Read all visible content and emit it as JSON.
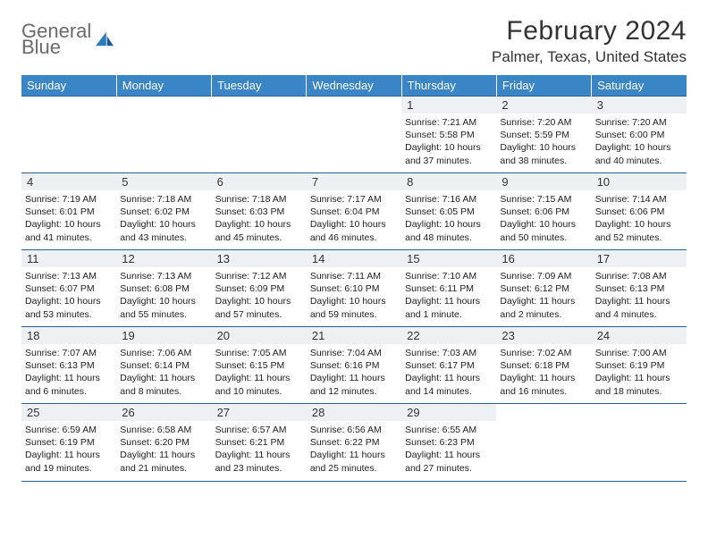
{
  "logo": {
    "line1": "General",
    "line2": "Blue"
  },
  "title": "February 2024",
  "location": "Palmer, Texas, United States",
  "dow": [
    "Sunday",
    "Monday",
    "Tuesday",
    "Wednesday",
    "Thursday",
    "Friday",
    "Saturday"
  ],
  "colors": {
    "header_bg": "#3a85c6",
    "header_text": "#ffffff",
    "rule": "#2f5f8f",
    "daynum_bg": "#eef1f3",
    "logo_gray": "#6b6b6b",
    "logo_blue": "#2b7bbf"
  },
  "weeks": [
    [
      null,
      null,
      null,
      null,
      {
        "n": "1",
        "sr": "7:21 AM",
        "ss": "5:58 PM",
        "dl": "10 hours and 37 minutes."
      },
      {
        "n": "2",
        "sr": "7:20 AM",
        "ss": "5:59 PM",
        "dl": "10 hours and 38 minutes."
      },
      {
        "n": "3",
        "sr": "7:20 AM",
        "ss": "6:00 PM",
        "dl": "10 hours and 40 minutes."
      }
    ],
    [
      {
        "n": "4",
        "sr": "7:19 AM",
        "ss": "6:01 PM",
        "dl": "10 hours and 41 minutes."
      },
      {
        "n": "5",
        "sr": "7:18 AM",
        "ss": "6:02 PM",
        "dl": "10 hours and 43 minutes."
      },
      {
        "n": "6",
        "sr": "7:18 AM",
        "ss": "6:03 PM",
        "dl": "10 hours and 45 minutes."
      },
      {
        "n": "7",
        "sr": "7:17 AM",
        "ss": "6:04 PM",
        "dl": "10 hours and 46 minutes."
      },
      {
        "n": "8",
        "sr": "7:16 AM",
        "ss": "6:05 PM",
        "dl": "10 hours and 48 minutes."
      },
      {
        "n": "9",
        "sr": "7:15 AM",
        "ss": "6:06 PM",
        "dl": "10 hours and 50 minutes."
      },
      {
        "n": "10",
        "sr": "7:14 AM",
        "ss": "6:06 PM",
        "dl": "10 hours and 52 minutes."
      }
    ],
    [
      {
        "n": "11",
        "sr": "7:13 AM",
        "ss": "6:07 PM",
        "dl": "10 hours and 53 minutes."
      },
      {
        "n": "12",
        "sr": "7:13 AM",
        "ss": "6:08 PM",
        "dl": "10 hours and 55 minutes."
      },
      {
        "n": "13",
        "sr": "7:12 AM",
        "ss": "6:09 PM",
        "dl": "10 hours and 57 minutes."
      },
      {
        "n": "14",
        "sr": "7:11 AM",
        "ss": "6:10 PM",
        "dl": "10 hours and 59 minutes."
      },
      {
        "n": "15",
        "sr": "7:10 AM",
        "ss": "6:11 PM",
        "dl": "11 hours and 1 minute."
      },
      {
        "n": "16",
        "sr": "7:09 AM",
        "ss": "6:12 PM",
        "dl": "11 hours and 2 minutes."
      },
      {
        "n": "17",
        "sr": "7:08 AM",
        "ss": "6:13 PM",
        "dl": "11 hours and 4 minutes."
      }
    ],
    [
      {
        "n": "18",
        "sr": "7:07 AM",
        "ss": "6:13 PM",
        "dl": "11 hours and 6 minutes."
      },
      {
        "n": "19",
        "sr": "7:06 AM",
        "ss": "6:14 PM",
        "dl": "11 hours and 8 minutes."
      },
      {
        "n": "20",
        "sr": "7:05 AM",
        "ss": "6:15 PM",
        "dl": "11 hours and 10 minutes."
      },
      {
        "n": "21",
        "sr": "7:04 AM",
        "ss": "6:16 PM",
        "dl": "11 hours and 12 minutes."
      },
      {
        "n": "22",
        "sr": "7:03 AM",
        "ss": "6:17 PM",
        "dl": "11 hours and 14 minutes."
      },
      {
        "n": "23",
        "sr": "7:02 AM",
        "ss": "6:18 PM",
        "dl": "11 hours and 16 minutes."
      },
      {
        "n": "24",
        "sr": "7:00 AM",
        "ss": "6:19 PM",
        "dl": "11 hours and 18 minutes."
      }
    ],
    [
      {
        "n": "25",
        "sr": "6:59 AM",
        "ss": "6:19 PM",
        "dl": "11 hours and 19 minutes."
      },
      {
        "n": "26",
        "sr": "6:58 AM",
        "ss": "6:20 PM",
        "dl": "11 hours and 21 minutes."
      },
      {
        "n": "27",
        "sr": "6:57 AM",
        "ss": "6:21 PM",
        "dl": "11 hours and 23 minutes."
      },
      {
        "n": "28",
        "sr": "6:56 AM",
        "ss": "6:22 PM",
        "dl": "11 hours and 25 minutes."
      },
      {
        "n": "29",
        "sr": "6:55 AM",
        "ss": "6:23 PM",
        "dl": "11 hours and 27 minutes."
      },
      null,
      null
    ]
  ],
  "labels": {
    "sunrise": "Sunrise: ",
    "sunset": "Sunset: ",
    "daylight": "Daylight: "
  }
}
